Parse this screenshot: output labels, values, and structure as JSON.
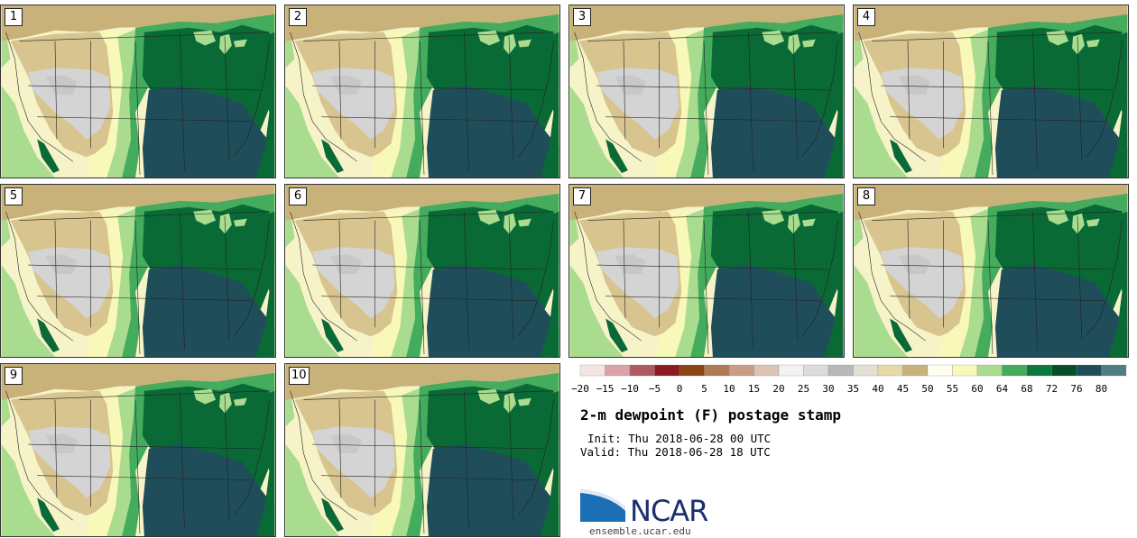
{
  "panels": [
    {
      "label": "1"
    },
    {
      "label": "2"
    },
    {
      "label": "3"
    },
    {
      "label": "4"
    },
    {
      "label": "5"
    },
    {
      "label": "6"
    },
    {
      "label": "7"
    },
    {
      "label": "8"
    },
    {
      "label": "9"
    },
    {
      "label": "10"
    }
  ],
  "legend": {
    "ticks": [
      "−20",
      "−15",
      "−10",
      "−5",
      "0",
      "5",
      "10",
      "15",
      "20",
      "25",
      "30",
      "35",
      "40",
      "45",
      "50",
      "55",
      "60",
      "64",
      "68",
      "72",
      "76",
      "80"
    ],
    "colors": [
      "#f4e4e4",
      "#d8a3a7",
      "#b05a60",
      "#8c1b22",
      "#8b4513",
      "#b07a56",
      "#c99c85",
      "#ddc2b6",
      "#f2f2f2",
      "#dcdcdc",
      "#b8b8b8",
      "#e3e0d1",
      "#e6d9a6",
      "#c9b27a",
      "#fffff0",
      "#f8f8b9",
      "#a9dc8f",
      "#45ab5d",
      "#0a7a3c",
      "#064d2a",
      "#1f4e5a",
      "#4d7f82"
    ]
  },
  "title": "2-m dewpoint (F) postage stamp",
  "init": "Init: Thu 2018-06-28 00 UTC",
  "valid": "Valid: Thu 2018-06-28 18 UTC",
  "logo": {
    "name": "NCAR",
    "url": "ensemble.ucar.edu"
  },
  "map_colors": {
    "ocean": "#f7f3c8",
    "pacific": "#a9dc8f",
    "tan": "#c9b27a",
    "grey": "#d4d4d4",
    "lightgreen": "#a9dc8f",
    "green": "#45ab5d",
    "darkgreen": "#0a6a36",
    "teal": "#1f4e5a",
    "yellow": "#f8f8b9"
  }
}
